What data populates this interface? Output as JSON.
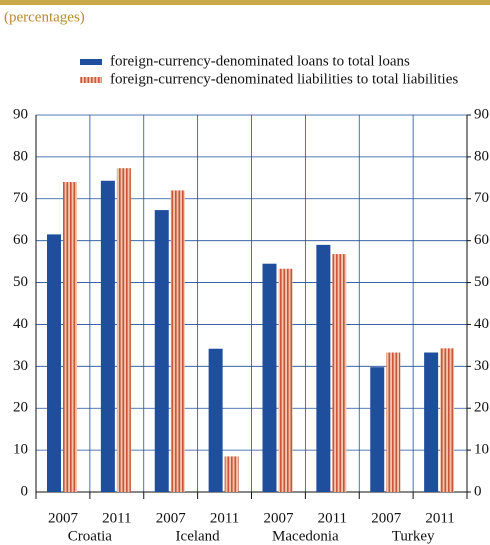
{
  "chart_data": {
    "type": "bar",
    "subtitle": "(percentages)",
    "categories": [
      "2007",
      "2011",
      "2007",
      "2011",
      "2007",
      "2011",
      "2007",
      "2011"
    ],
    "groups": [
      "Croatia",
      "Iceland",
      "Macedonia",
      "Turkey"
    ],
    "series": [
      {
        "name": "foreign-currency-denominated loans to total loans",
        "color": "#1f4e9c",
        "values": [
          61.5,
          74.3,
          67.3,
          34.2,
          54.5,
          59,
          29.8,
          33.3
        ]
      },
      {
        "name": "foreign-currency-denominated liabilities to total liabilities",
        "color": "#c8553d",
        "values": [
          74,
          77.3,
          72,
          8.5,
          53.3,
          56.8,
          33.3,
          34.3
        ]
      }
    ],
    "ylim": [
      0,
      90
    ],
    "yticks": [
      0,
      10,
      20,
      30,
      40,
      50,
      60,
      70,
      80,
      90
    ],
    "y2lim": [
      0,
      90
    ],
    "y2ticks": [
      0,
      10,
      20,
      30,
      40,
      50,
      60,
      70,
      80,
      90
    ],
    "grid": true
  }
}
